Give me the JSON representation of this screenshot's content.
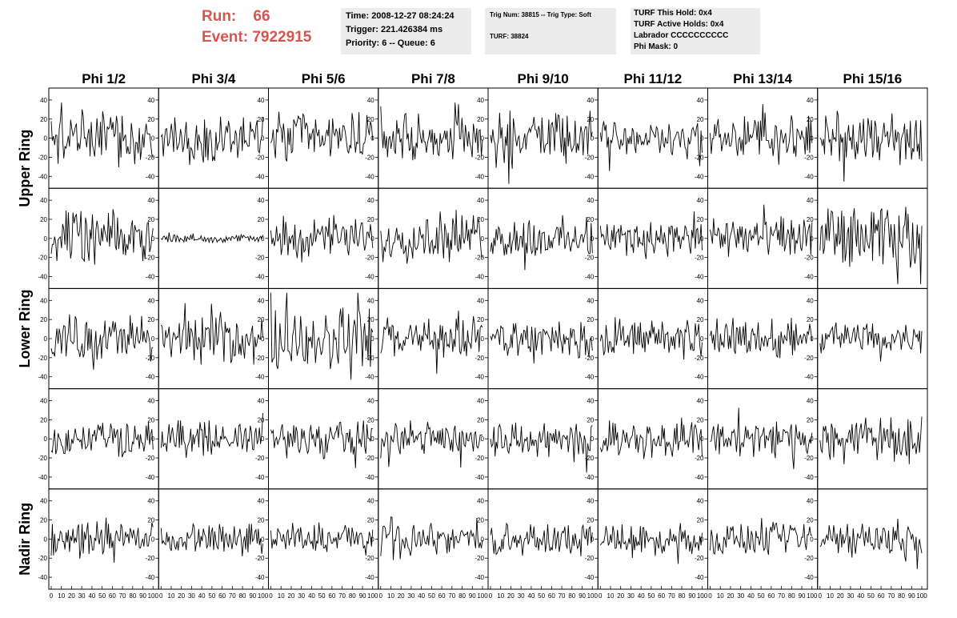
{
  "header": {
    "run_label": "Run:",
    "run_value": "66",
    "event_label": "Event:",
    "event_value": "7922915"
  },
  "info_panel_1": {
    "time": "Time: 2008-12-27 08:24:24",
    "trigger": "Trigger: 221.426384 ms",
    "priority": "Priority: 6 -- Queue: 6"
  },
  "info_panel_2": {
    "trig": "Trig Num: 38815 -- Trig Type: Soft",
    "turf": "TURF: 38824"
  },
  "info_panel_3": {
    "hold": "TURF This Hold: 0x4",
    "active": "TURF Active Holds: 0x4",
    "labrador": "Labrador CCCCCCCCCC",
    "phimask": "Phi Mask: 0"
  },
  "columns": [
    "Phi 1/2",
    "Phi 3/4",
    "Phi 5/6",
    "Phi 7/8",
    "Phi 9/10",
    "Phi 11/12",
    "Phi 13/14",
    "Phi 15/16"
  ],
  "rows": [
    "Upper Ring",
    "Lower Ring",
    "Nadir Ring"
  ],
  "colors": {
    "header_text": "#d9534f",
    "panel_bg": "#ececec",
    "trace": "#000000"
  },
  "chart_data": {
    "type": "line",
    "panel_grid": {
      "rows": 5,
      "cols": 8
    },
    "xlim": [
      0,
      100
    ],
    "ylim": [
      -50,
      50
    ],
    "x_ticks": [
      0,
      10,
      20,
      30,
      40,
      50,
      60,
      70,
      80,
      90,
      100
    ],
    "y_ticks": [
      -40,
      -20,
      0,
      20,
      40
    ],
    "samples_per_trace": 90,
    "amplitude": [
      [
        20,
        18,
        20,
        18,
        20,
        14,
        18,
        20
      ],
      [
        20,
        3,
        16,
        18,
        16,
        14,
        16,
        24
      ],
      [
        18,
        18,
        26,
        16,
        14,
        16,
        16,
        12
      ],
      [
        14,
        14,
        14,
        14,
        14,
        14,
        14,
        18
      ],
      [
        12,
        12,
        12,
        12,
        12,
        12,
        12,
        14
      ]
    ]
  }
}
